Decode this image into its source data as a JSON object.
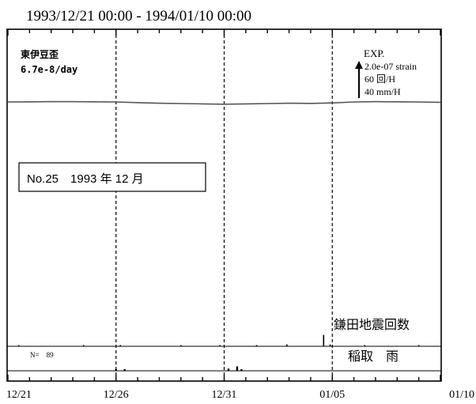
{
  "chart_data": {
    "type": "line",
    "title": "1993/12/21 00:00 - 1994/01/10 00:00",
    "x_tick_labels": [
      "12/21",
      "12/26",
      "12/31",
      "01/05",
      "01/10"
    ],
    "x_range_days": [
      0,
      20
    ],
    "dashed_guides_days": [
      5,
      10,
      15
    ],
    "station": "東伊豆歪",
    "rate": "6.7e-8/day",
    "scale_legend": {
      "label": "EXP.",
      "lines": [
        "2.0e-07 strain",
        "60 回/H",
        "40 mm/H"
      ]
    },
    "note": "No.25　1993 年 12 月",
    "series": [
      {
        "name": "strain",
        "trend": "flat",
        "values": [
          [
            0,
            0.0
          ],
          [
            1,
            0.02
          ],
          [
            2,
            0.05
          ],
          [
            3,
            0.05
          ],
          [
            4,
            0.03
          ],
          [
            5,
            0.0
          ],
          [
            6,
            -0.1
          ],
          [
            7,
            -0.2
          ],
          [
            8,
            -0.25
          ],
          [
            9,
            -0.3
          ],
          [
            10,
            -0.35
          ],
          [
            11,
            -0.3
          ],
          [
            12,
            -0.25
          ],
          [
            13,
            -0.2
          ],
          [
            14,
            -0.22
          ],
          [
            15,
            -0.15
          ],
          [
            16,
            0.0
          ],
          [
            17,
            0.05
          ],
          [
            18,
            0.02
          ],
          [
            19,
            0.0
          ],
          [
            20,
            -0.05
          ]
        ]
      },
      {
        "name": "鎌田地震回数",
        "values": [
          [
            0.5,
            1
          ],
          [
            3.5,
            1
          ],
          [
            5.2,
            1
          ],
          [
            8.0,
            1
          ],
          [
            9.8,
            1
          ],
          [
            11.5,
            1
          ],
          [
            12.9,
            2
          ],
          [
            14.6,
            12
          ],
          [
            14.9,
            2
          ],
          [
            16.5,
            1
          ],
          [
            19.0,
            1
          ]
        ]
      },
      {
        "name": "稲取　雨",
        "count_label": "N=　89",
        "values": [
          [
            5.0,
            1.5
          ],
          [
            5.4,
            1.5
          ],
          [
            10.2,
            2.0
          ],
          [
            10.6,
            4.0
          ],
          [
            10.8,
            1.5
          ]
        ]
      }
    ]
  }
}
